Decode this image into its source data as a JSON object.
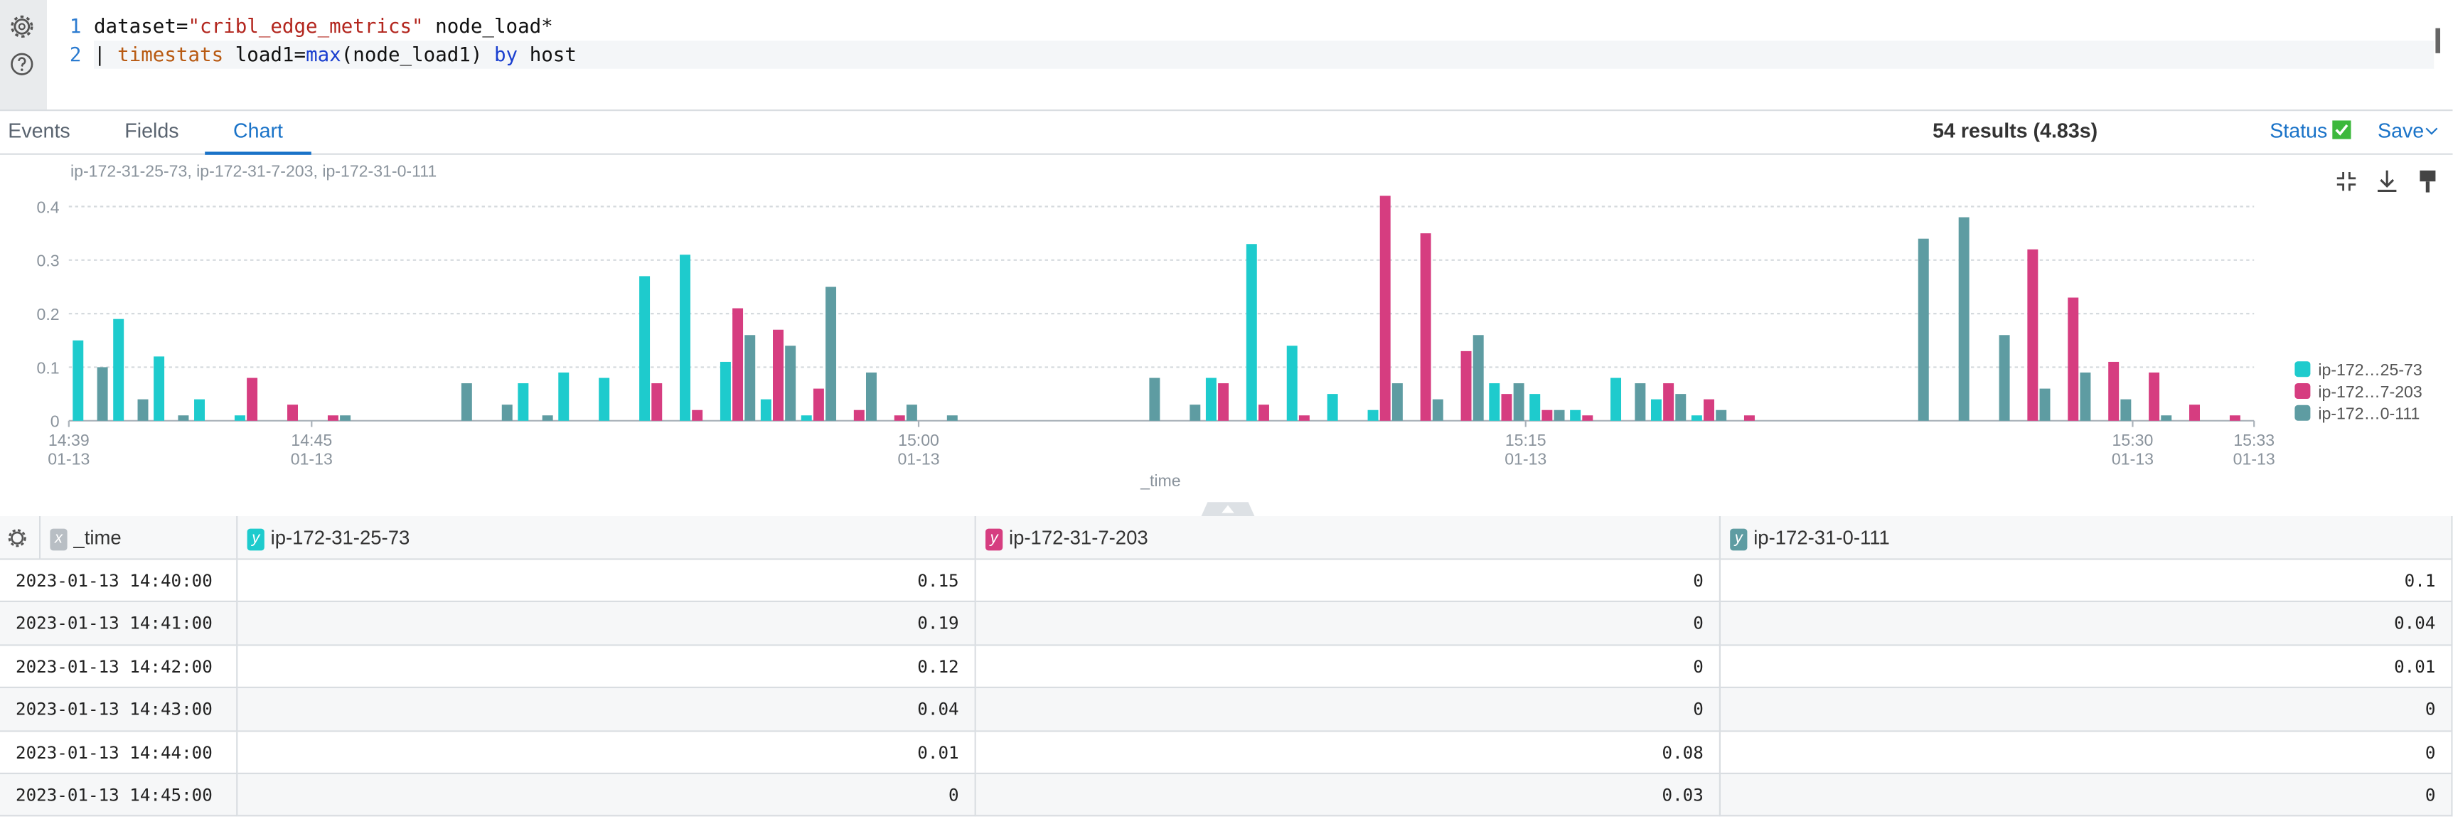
{
  "editor": {
    "lines": [
      {
        "number": "1",
        "tokens": [
          {
            "text": "dataset=",
            "kind": "plain"
          },
          {
            "text": "\"cribl_edge_metrics\"",
            "kind": "string"
          },
          {
            "text": " node_load*",
            "kind": "plain"
          }
        ]
      },
      {
        "number": "2",
        "tokens": [
          {
            "text": "| ",
            "kind": "plain"
          },
          {
            "text": "timestats",
            "kind": "keyword"
          },
          {
            "text": " load1=",
            "kind": "plain"
          },
          {
            "text": "max",
            "kind": "function"
          },
          {
            "text": "(node_load1) ",
            "kind": "plain"
          },
          {
            "text": "by",
            "kind": "operator"
          },
          {
            "text": " host",
            "kind": "plain"
          }
        ]
      }
    ]
  },
  "tabs": {
    "items": [
      "Events",
      "Fields",
      "Chart"
    ],
    "active": 2
  },
  "status_bar": {
    "results": "54 results (4.83s)",
    "status": "Status",
    "save": "Save"
  },
  "chart_data": {
    "type": "bar",
    "series_caption": "ip-172-31-25-73, ip-172-31-7-203, ip-172-31-0-111",
    "xlabel": "_time",
    "x": [
      "14:40",
      "14:41",
      "14:42",
      "14:43",
      "14:44",
      "14:45",
      "14:46",
      "14:47",
      "14:48",
      "14:49",
      "14:50",
      "14:51",
      "14:52",
      "14:53",
      "14:54",
      "14:55",
      "14:56",
      "14:57",
      "14:58",
      "14:59",
      "15:00",
      "15:01",
      "15:02",
      "15:03",
      "15:04",
      "15:05",
      "15:06",
      "15:07",
      "15:08",
      "15:09",
      "15:10",
      "15:11",
      "15:12",
      "15:13",
      "15:14",
      "15:15",
      "15:16",
      "15:17",
      "15:18",
      "15:19",
      "15:20",
      "15:21",
      "15:22",
      "15:23",
      "15:24",
      "15:25",
      "15:26",
      "15:27",
      "15:28",
      "15:29",
      "15:30",
      "15:31",
      "15:32",
      "15:33"
    ],
    "xlim": [
      "14:39",
      "15:33"
    ],
    "xticks": [
      {
        "time": "14:39",
        "date": "01-13"
      },
      {
        "time": "14:45",
        "date": "01-13"
      },
      {
        "time": "15:00",
        "date": "01-13"
      },
      {
        "time": "15:15",
        "date": "01-13"
      },
      {
        "time": "15:30",
        "date": "01-13"
      },
      {
        "time": "15:33",
        "date": "01-13"
      }
    ],
    "ylim": [
      0,
      0.42
    ],
    "yticks": [
      0,
      0.1,
      0.2,
      0.3,
      0.4
    ],
    "grid": true,
    "legend": "right",
    "series": [
      {
        "name": "ip-172-31-25-73",
        "legend_label": "ip-172…25-73",
        "color": "#1ecbcd",
        "values": [
          0.15,
          0.19,
          0.12,
          0.04,
          0.01,
          0,
          0,
          0,
          0,
          0,
          0,
          0.07,
          0.09,
          0.08,
          0.27,
          0.31,
          0.11,
          0.04,
          0.01,
          0,
          0,
          0,
          0,
          0,
          0,
          0,
          0,
          0,
          0.08,
          0.33,
          0.14,
          0.05,
          0.02,
          0,
          0,
          0.07,
          0.05,
          0.02,
          0.08,
          0.04,
          0.01,
          0,
          0,
          0,
          0,
          0,
          0,
          0,
          0,
          0,
          0,
          0,
          0,
          0
        ]
      },
      {
        "name": "ip-172-31-7-203",
        "legend_label": "ip-172…7-203",
        "color": "#d63d80",
        "values": [
          0,
          0,
          0,
          0,
          0.08,
          0.03,
          0.01,
          0,
          0,
          0,
          0,
          0,
          0,
          0,
          0.07,
          0.02,
          0.21,
          0.17,
          0.06,
          0.02,
          0.01,
          0,
          0,
          0,
          0,
          0,
          0,
          0,
          0.07,
          0.03,
          0.01,
          0,
          0.42,
          0.35,
          0.13,
          0.05,
          0.02,
          0.01,
          0,
          0.07,
          0.04,
          0.01,
          0,
          0,
          0,
          0,
          0,
          0,
          0.32,
          0.23,
          0.11,
          0.09,
          0.03,
          0.01
        ]
      },
      {
        "name": "ip-172-31-0-111",
        "legend_label": "ip-172…0-111",
        "color": "#5e9ca2",
        "values": [
          0.1,
          0.04,
          0.01,
          0,
          0,
          0,
          0.01,
          0,
          0,
          0.07,
          0.03,
          0.01,
          0,
          0,
          0,
          0,
          0.16,
          0.14,
          0.25,
          0.09,
          0.03,
          0.01,
          0,
          0,
          0,
          0,
          0.08,
          0.03,
          0,
          0,
          0,
          0,
          0.07,
          0.04,
          0.16,
          0.07,
          0.02,
          0,
          0.07,
          0.05,
          0.02,
          0,
          0,
          0,
          0,
          0.34,
          0.38,
          0.16,
          0.06,
          0.09,
          0.04,
          0.01,
          0,
          0
        ]
      }
    ]
  },
  "table": {
    "columns": [
      {
        "badge": "x",
        "name": "_time"
      },
      {
        "badge": "y",
        "name": "ip-172-31-25-73"
      },
      {
        "badge": "y",
        "name": "ip-172-31-7-203"
      },
      {
        "badge": "y",
        "name": "ip-172-31-0-111"
      }
    ],
    "rows": [
      [
        "2023-01-13 14:40:00",
        0.15,
        0,
        0.1
      ],
      [
        "2023-01-13 14:41:00",
        0.19,
        0,
        0.04
      ],
      [
        "2023-01-13 14:42:00",
        0.12,
        0,
        0.01
      ],
      [
        "2023-01-13 14:43:00",
        0.04,
        0,
        0
      ],
      [
        "2023-01-13 14:44:00",
        0.01,
        0.08,
        0
      ],
      [
        "2023-01-13 14:45:00",
        0,
        0.03,
        0
      ]
    ]
  }
}
